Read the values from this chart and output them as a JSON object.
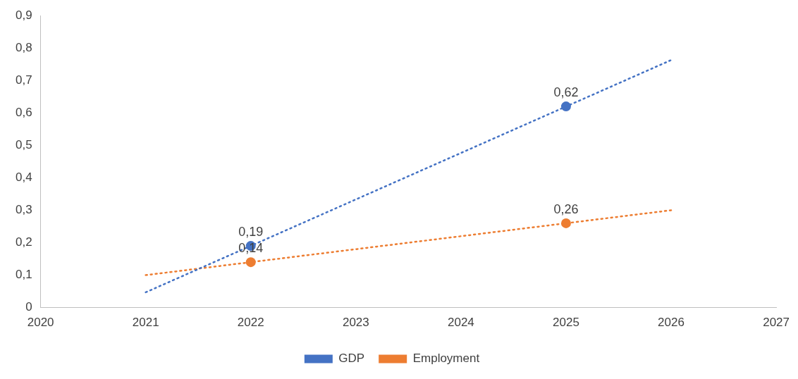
{
  "chart_data": {
    "type": "scatter",
    "marker": "circle",
    "legend": "bottom",
    "grid": false,
    "xlim": [
      2020,
      2027
    ],
    "xticks": [
      2020,
      2021,
      2022,
      2023,
      2024,
      2025,
      2026,
      2027
    ],
    "ylim": [
      0,
      0.9
    ],
    "yticks": [
      0,
      {
        "value": 0.1,
        "label": "0,1"
      },
      {
        "value": 0.2,
        "label": "0,2"
      },
      {
        "value": 0.3,
        "label": "0,3"
      },
      {
        "value": 0.4,
        "label": "0,4"
      },
      {
        "value": 0.5,
        "label": "0,5"
      },
      {
        "value": 0.6,
        "label": "0,6"
      },
      {
        "value": 0.7,
        "label": "0,7"
      },
      {
        "value": 0.8,
        "label": "0,8"
      },
      {
        "value": 0.9,
        "label": "0,9"
      }
    ],
    "series": [
      {
        "name": "GDP",
        "color": "#4472c4",
        "x": [
          2022,
          2025
        ],
        "values": [
          0.19,
          0.62
        ],
        "value_labels": [
          "0,19",
          "0,62"
        ]
      },
      {
        "name": "Employment",
        "color": "#ed7d31",
        "x": [
          2022,
          2025
        ],
        "values": [
          0.14,
          0.26
        ],
        "value_labels": [
          "0,14",
          "0,26"
        ]
      },
      {
        "type": "line",
        "line_style": "dotted",
        "marker": "none",
        "color": "#4472c4",
        "x": [
          2021,
          2026
        ],
        "values": [
          0.047,
          0.763
        ]
      },
      {
        "type": "line",
        "line_style": "dotted",
        "marker": "none",
        "color": "#ed7d31",
        "x": [
          2021,
          2026
        ],
        "values": [
          0.1,
          0.3
        ]
      }
    ]
  }
}
